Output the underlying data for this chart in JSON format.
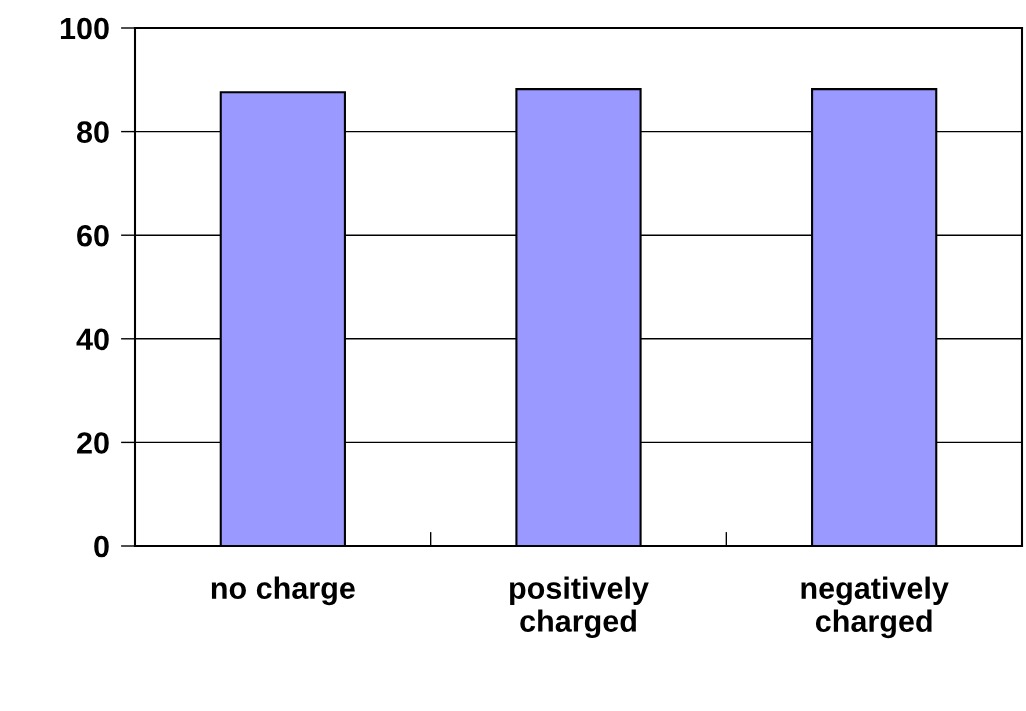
{
  "chart_data": {
    "type": "bar",
    "categories": [
      "no charge",
      "positively\ncharged",
      "negatively\ncharged"
    ],
    "values": [
      87.6,
      88.2,
      88.2
    ],
    "color": "#9999ff",
    "ylim": [
      0,
      100
    ],
    "yticks": [
      0,
      20,
      40,
      60,
      80,
      100
    ],
    "grid": "y"
  }
}
